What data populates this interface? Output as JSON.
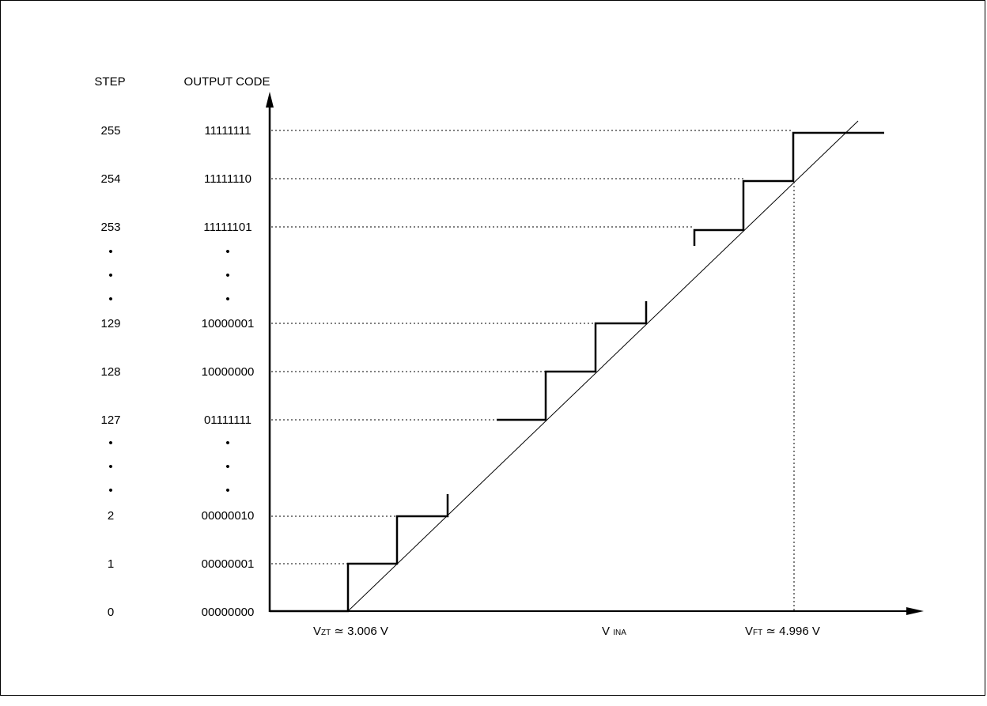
{
  "headers": {
    "step": "STEP",
    "output_code": "OUTPUT CODE"
  },
  "rows": [
    {
      "step": "255",
      "code": "11111111"
    },
    {
      "step": "254",
      "code": "11111110"
    },
    {
      "step": "253",
      "code": "11111101"
    },
    {
      "step": "•",
      "code": "•"
    },
    {
      "step": "•",
      "code": "•"
    },
    {
      "step": "•",
      "code": "•"
    },
    {
      "step": "129",
      "code": "10000001"
    },
    {
      "step": "128",
      "code": "10000000"
    },
    {
      "step": "127",
      "code": "01111111"
    },
    {
      "step": "•",
      "code": "•"
    },
    {
      "step": "•",
      "code": "•"
    },
    {
      "step": "•",
      "code": "•"
    },
    {
      "step": "2",
      "code": "00000010"
    },
    {
      "step": "1",
      "code": "00000001"
    },
    {
      "step": "0",
      "code": "00000000"
    }
  ],
  "x_labels": {
    "vzt_main": "V",
    "vzt_sub": "ZT",
    "vzt_value": " ≃ 3.006 V",
    "vina_main": "V ",
    "vina_sub": "INA",
    "vft_main": "V",
    "vft_sub": "FT",
    "vft_value": " ≃ 4.996 V"
  },
  "colors": {
    "line": "#000000",
    "background": "#ffffff"
  }
}
